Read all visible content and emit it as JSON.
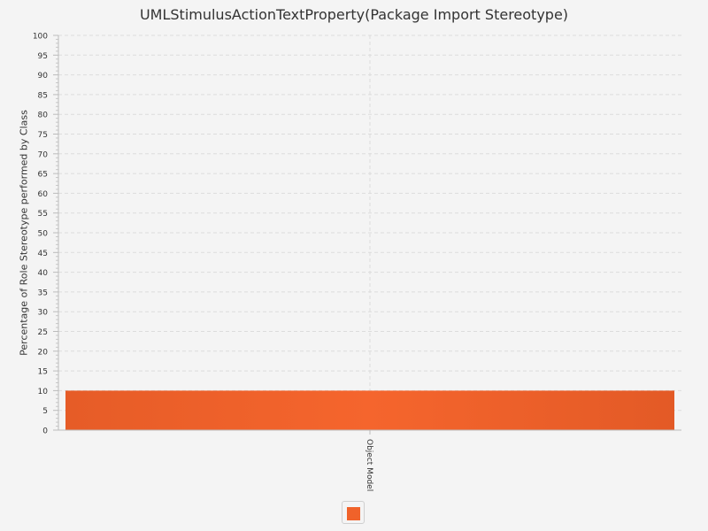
{
  "chart_data": {
    "type": "bar",
    "title": "UMLStimulusActionTextProperty(Package Import Stereotype)",
    "ylabel": "Percentage of Role Stereotype performed by Class",
    "xlabel": "",
    "categories": [
      "Object Model"
    ],
    "values": [
      10
    ],
    "ylim": [
      0,
      100
    ],
    "ytick_step": 5,
    "grid": true,
    "legend": "bottom",
    "bar_color": "#f0622a"
  }
}
